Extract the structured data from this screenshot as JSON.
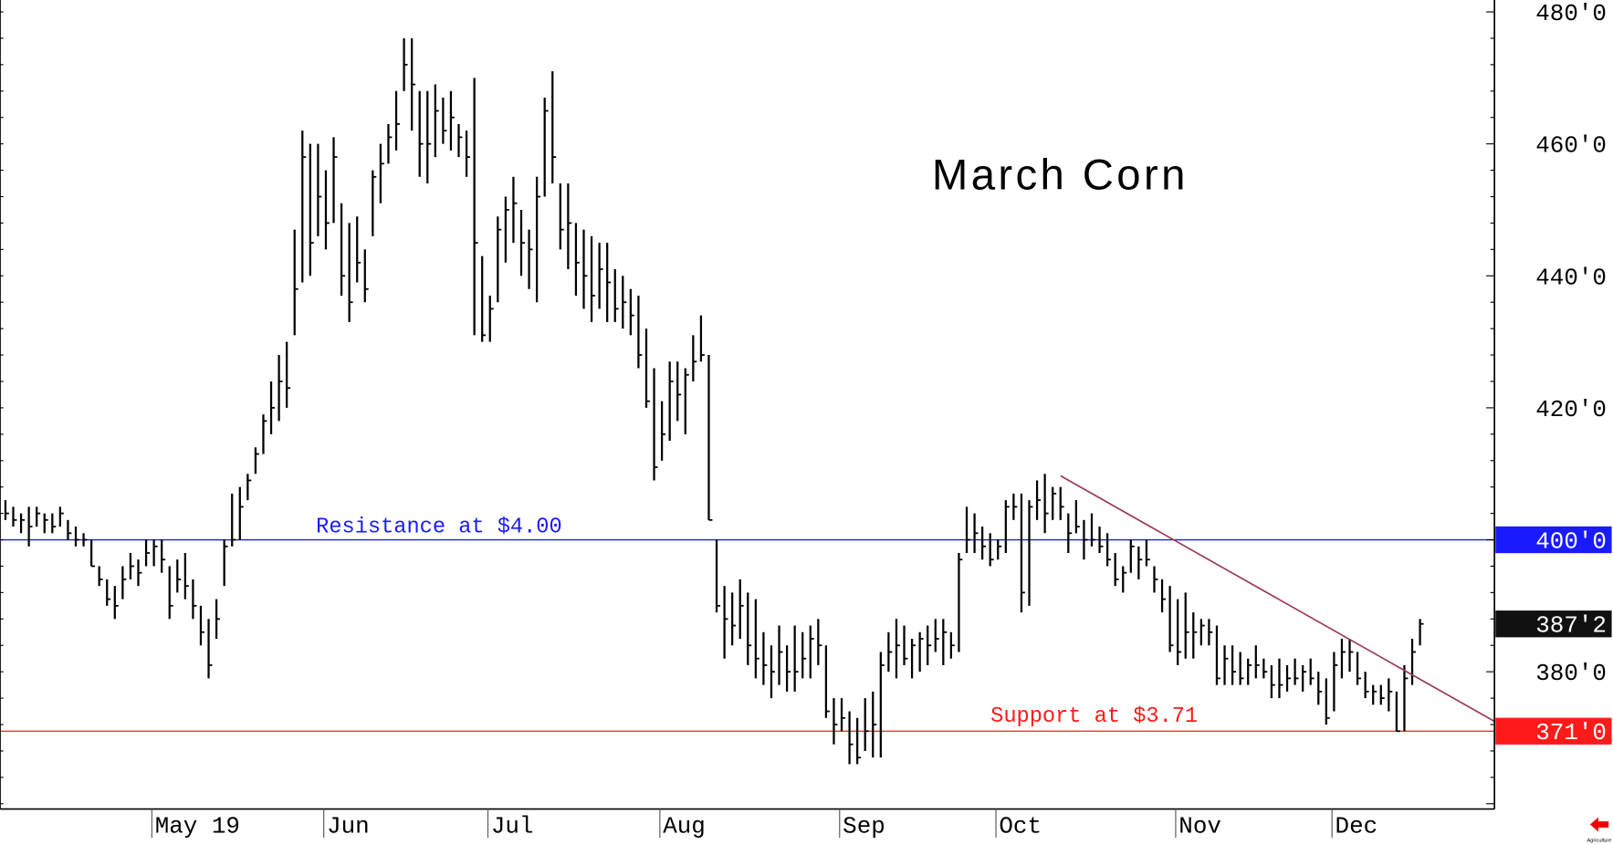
{
  "chart_data": {
    "type": "ohlc-bar",
    "title": "March Corn",
    "ylim": [
      359.2,
      481.8
    ],
    "y_ticks": [
      {
        "value": 480,
        "label": "480'0"
      },
      {
        "value": 460,
        "label": "460'0"
      },
      {
        "value": 440,
        "label": "440'0"
      },
      {
        "value": 420,
        "label": "420'0"
      },
      {
        "value": 380,
        "label": "380'0"
      }
    ],
    "highlighted_levels": [
      {
        "value": 400,
        "label": "400'0",
        "color": "#1a1aff"
      },
      {
        "value": 387.25,
        "label": "387'2",
        "color": "#111111"
      },
      {
        "value": 371,
        "label": "371'0",
        "color": "#ff1a1a"
      }
    ],
    "x_ticks": [
      "May 19",
      "Jun",
      "Jul",
      "Aug",
      "Sep",
      "Oct",
      "Nov",
      "Dec"
    ],
    "x_tick_bar_index": [
      19,
      41,
      62,
      84,
      107,
      127,
      150,
      170
    ],
    "bars_hlc": [
      [
        406,
        403,
        404
      ],
      [
        405,
        402,
        403
      ],
      [
        404,
        401,
        403
      ],
      [
        405,
        399,
        402
      ],
      [
        405,
        402,
        404
      ],
      [
        404,
        401,
        403
      ],
      [
        404,
        401,
        402
      ],
      [
        405,
        402,
        404
      ],
      [
        403,
        400,
        401
      ],
      [
        402,
        399,
        400
      ],
      [
        401,
        399,
        400
      ],
      [
        400,
        396,
        396
      ],
      [
        396,
        393,
        394
      ],
      [
        394,
        390,
        391
      ],
      [
        393,
        388,
        390
      ],
      [
        396,
        391,
        394
      ],
      [
        398,
        394,
        396
      ],
      [
        397,
        393,
        395
      ],
      [
        400,
        396,
        398
      ],
      [
        400,
        396,
        399
      ],
      [
        400,
        395,
        397
      ],
      [
        396,
        388,
        390
      ],
      [
        397,
        392,
        394
      ],
      [
        398,
        391,
        393
      ],
      [
        394,
        388,
        390
      ],
      [
        390,
        384,
        386
      ],
      [
        388,
        379,
        381
      ],
      [
        391,
        385,
        388
      ],
      [
        400,
        393,
        399
      ],
      [
        407,
        399,
        400
      ],
      [
        408,
        400,
        405
      ],
      [
        410,
        406,
        409
      ],
      [
        414,
        410,
        413
      ],
      [
        419,
        413,
        418
      ],
      [
        424,
        416,
        420
      ],
      [
        428,
        418,
        424
      ],
      [
        430,
        420,
        423
      ],
      [
        447,
        431,
        438
      ],
      [
        462,
        439,
        458
      ],
      [
        460,
        440,
        445
      ],
      [
        460,
        446,
        452
      ],
      [
        456,
        444,
        448
      ],
      [
        461,
        448,
        458
      ],
      [
        451,
        437,
        440
      ],
      [
        448,
        433,
        436
      ],
      [
        449,
        439,
        442
      ],
      [
        444,
        436,
        438
      ],
      [
        456,
        446,
        455
      ],
      [
        460,
        451,
        457
      ],
      [
        463,
        457,
        461
      ],
      [
        468,
        459,
        463
      ],
      [
        476,
        468,
        472
      ],
      [
        476,
        462,
        469
      ],
      [
        468,
        455,
        460
      ],
      [
        468,
        454,
        460
      ],
      [
        469,
        458,
        465
      ],
      [
        467,
        460,
        462
      ],
      [
        468,
        459,
        464
      ],
      [
        463,
        458,
        461
      ],
      [
        462,
        455,
        458
      ],
      [
        470,
        431,
        445
      ],
      [
        443,
        430,
        431
      ],
      [
        437,
        430,
        435
      ],
      [
        449,
        436,
        447
      ],
      [
        452,
        442,
        450
      ],
      [
        455,
        445,
        451
      ],
      [
        450,
        440,
        445
      ],
      [
        447,
        438,
        444
      ],
      [
        455,
        436,
        452
      ],
      [
        467,
        452,
        465
      ],
      [
        471,
        454,
        458
      ],
      [
        454,
        444,
        447
      ],
      [
        454,
        441,
        448
      ],
      [
        448,
        437,
        442
      ],
      [
        447,
        435,
        440
      ],
      [
        446,
        433,
        437
      ],
      [
        445,
        435,
        441
      ],
      [
        445,
        433,
        439
      ],
      [
        441,
        433,
        435
      ],
      [
        440,
        432,
        436
      ],
      [
        438,
        431,
        434
      ],
      [
        437,
        426,
        428
      ],
      [
        432,
        420,
        421
      ],
      [
        426,
        409,
        411
      ],
      [
        421,
        412,
        416
      ],
      [
        427,
        415,
        424
      ],
      [
        427,
        418,
        422
      ],
      [
        426,
        416,
        425
      ],
      [
        431,
        424,
        427
      ],
      [
        434,
        427,
        428
      ],
      [
        428,
        403,
        403
      ],
      [
        400,
        389,
        390
      ],
      [
        393,
        382,
        388
      ],
      [
        392,
        384,
        387
      ],
      [
        394,
        385,
        390
      ],
      [
        392,
        381,
        384
      ],
      [
        391,
        379,
        382
      ],
      [
        386,
        378,
        381
      ],
      [
        384,
        376,
        380
      ],
      [
        387,
        378,
        383
      ],
      [
        384,
        377,
        380
      ],
      [
        387,
        377,
        380
      ],
      [
        386,
        379,
        382
      ],
      [
        387,
        379,
        385
      ],
      [
        388,
        381,
        384
      ],
      [
        384,
        373,
        374
      ],
      [
        376,
        369,
        372
      ],
      [
        376,
        371,
        373
      ],
      [
        374,
        366,
        369
      ],
      [
        373,
        366,
        367
      ],
      [
        376,
        368,
        371
      ],
      [
        377,
        367,
        372
      ],
      [
        383,
        367,
        381
      ],
      [
        386,
        380,
        383
      ],
      [
        388,
        379,
        384
      ],
      [
        387,
        381,
        382
      ],
      [
        385,
        379,
        384
      ],
      [
        386,
        380,
        385
      ],
      [
        387,
        381,
        384
      ],
      [
        388,
        383,
        385
      ],
      [
        388,
        381,
        386
      ],
      [
        386,
        382,
        384
      ],
      [
        398,
        383,
        397
      ],
      [
        405,
        398,
        400
      ],
      [
        404,
        398,
        401
      ],
      [
        402,
        397,
        399
      ],
      [
        401,
        396,
        397
      ],
      [
        400,
        397,
        399
      ],
      [
        406,
        398,
        405
      ],
      [
        407,
        403,
        405
      ],
      [
        407,
        389,
        392
      ],
      [
        406,
        390,
        405
      ],
      [
        409,
        403,
        406
      ],
      [
        410,
        401,
        404
      ],
      [
        408,
        403,
        407
      ],
      [
        408,
        403,
        405
      ],
      [
        404,
        398,
        401
      ],
      [
        406,
        401,
        402
      ],
      [
        403,
        397,
        400
      ],
      [
        404,
        399,
        400
      ],
      [
        402,
        398,
        399
      ],
      [
        401,
        396,
        397
      ],
      [
        398,
        393,
        394
      ],
      [
        396,
        392,
        395
      ],
      [
        400,
        395,
        399
      ],
      [
        399,
        394,
        397
      ],
      [
        400,
        396,
        397
      ],
      [
        396,
        392,
        394
      ],
      [
        394,
        389,
        391
      ],
      [
        393,
        383,
        384
      ],
      [
        391,
        381,
        383
      ],
      [
        392,
        382,
        386
      ],
      [
        389,
        382,
        386
      ],
      [
        388,
        384,
        387
      ],
      [
        388,
        384,
        386
      ],
      [
        387,
        378,
        379
      ],
      [
        384,
        378,
        382
      ],
      [
        384,
        378,
        380
      ],
      [
        383,
        378,
        379
      ],
      [
        382,
        378,
        381
      ],
      [
        384,
        379,
        381
      ],
      [
        382,
        379,
        380
      ],
      [
        381,
        376,
        378
      ],
      [
        382,
        376,
        378
      ],
      [
        381,
        377,
        379
      ],
      [
        382,
        378,
        379
      ],
      [
        381,
        377,
        380
      ],
      [
        382,
        378,
        379
      ],
      [
        380,
        375,
        377
      ],
      [
        379,
        372,
        373
      ],
      [
        383,
        374,
        381
      ],
      [
        385,
        379,
        383
      ],
      [
        385,
        380,
        383
      ],
      [
        383,
        378,
        379
      ],
      [
        380,
        376,
        377
      ],
      [
        378,
        375,
        377
      ],
      [
        378,
        375,
        376
      ],
      [
        379,
        374,
        377
      ],
      [
        377,
        371,
        371
      ],
      [
        381,
        371,
        379
      ],
      [
        385,
        378,
        383
      ],
      [
        388,
        384,
        387.25
      ]
    ],
    "trendline": {
      "from_bar": 135,
      "from_price": 409.7,
      "to_bar": 190.5,
      "to_price": 372.5,
      "color": "#9a3a5a"
    },
    "annotations": [
      {
        "text": "Resistance at $4.00",
        "price": 400,
        "color": "#1a1aff"
      },
      {
        "text": "Support at $3.71",
        "price": 371,
        "color": "#ff1a1a"
      }
    ],
    "grid": false
  },
  "branding": {
    "logo_text": "Agriculture",
    "arrow_color": "#ee0000"
  }
}
